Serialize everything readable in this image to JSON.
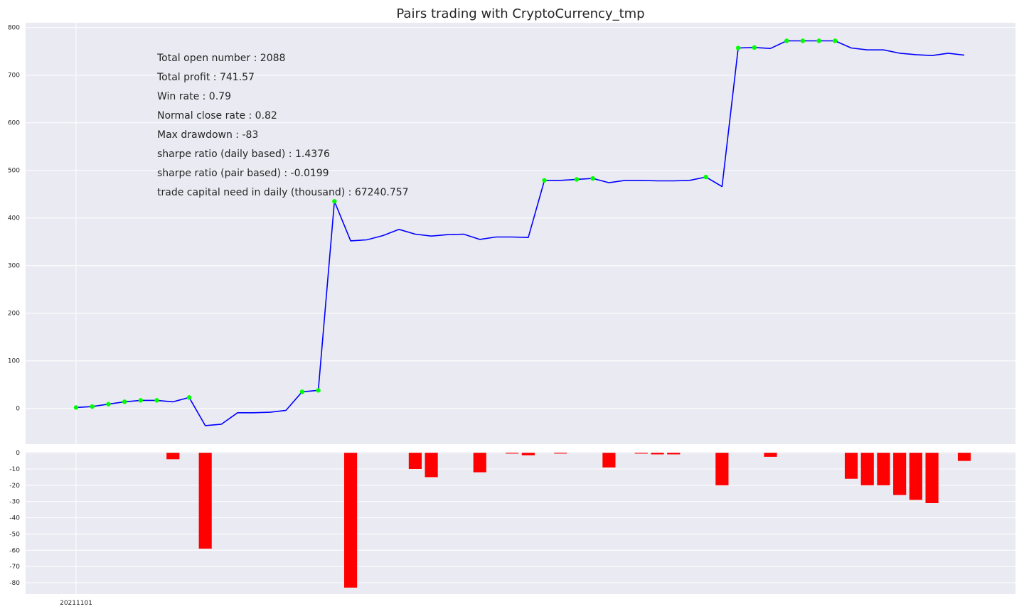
{
  "chart_data": [
    {
      "type": "line",
      "title": "Pairs trading with CryptoCurrency_tmp",
      "xlabel": "",
      "ylabel": "",
      "x_tick_labels": [
        "20211101"
      ],
      "ylim": [
        -75,
        810
      ],
      "y_ticks": [
        0,
        100,
        200,
        300,
        400,
        500,
        600,
        700,
        800
      ],
      "grid": true,
      "series": [
        {
          "color": "#0000ff",
          "values": [
            2,
            4,
            9,
            14,
            17,
            17,
            14,
            23,
            -36,
            -33,
            -9,
            -9,
            -8,
            -4,
            35,
            38,
            435,
            352,
            354,
            363,
            376,
            366,
            362,
            365,
            366,
            355,
            360,
            360,
            359,
            479,
            479,
            481,
            483,
            474,
            479,
            479,
            478,
            478,
            479,
            486,
            466,
            757,
            758,
            756,
            772,
            772,
            772,
            772,
            757,
            753,
            753,
            746,
            743,
            741,
            746,
            742
          ]
        }
      ],
      "markers": {
        "color": "#00ff00",
        "indices": [
          0,
          1,
          2,
          3,
          4,
          5,
          7,
          14,
          15,
          16,
          29,
          31,
          32,
          39,
          41,
          42,
          44,
          45,
          46,
          47
        ]
      },
      "annotations": [
        "Total open number : 2088",
        "Total profit : 741.57",
        "Win rate : 0.79",
        "Normal close rate : 0.82",
        "Max drawdown : -83",
        "sharpe ratio (daily based) : 1.4376",
        "sharpe ratio (pair based) : -0.0199",
        "trade capital need in daily (thousand) : 67240.757"
      ]
    },
    {
      "type": "bar",
      "title": "",
      "xlabel": "",
      "ylabel": "",
      "ylim": [
        -87,
        0.5
      ],
      "y_ticks": [
        0,
        -10,
        -20,
        -30,
        -40,
        -50,
        -60,
        -70,
        -80
      ],
      "grid": true,
      "bar_color": "#ff0000",
      "bars": [
        {
          "i": 6,
          "value": -4
        },
        {
          "i": 8,
          "value": -59
        },
        {
          "i": 17,
          "value": -83
        },
        {
          "i": 21,
          "value": -10
        },
        {
          "i": 22,
          "value": -15
        },
        {
          "i": 25,
          "value": -12
        },
        {
          "i": 27,
          "value": -0.5
        },
        {
          "i": 28,
          "value": -1.5
        },
        {
          "i": 30,
          "value": -0.5
        },
        {
          "i": 33,
          "value": -9
        },
        {
          "i": 35,
          "value": -0.5
        },
        {
          "i": 36,
          "value": -1
        },
        {
          "i": 37,
          "value": -1
        },
        {
          "i": 40,
          "value": -20
        },
        {
          "i": 43,
          "value": -2.5
        },
        {
          "i": 48,
          "value": -16
        },
        {
          "i": 49,
          "value": -20
        },
        {
          "i": 50,
          "value": -20
        },
        {
          "i": 51,
          "value": -26
        },
        {
          "i": 52,
          "value": -29
        },
        {
          "i": 53,
          "value": -31
        },
        {
          "i": 55,
          "value": -5
        }
      ]
    }
  ]
}
